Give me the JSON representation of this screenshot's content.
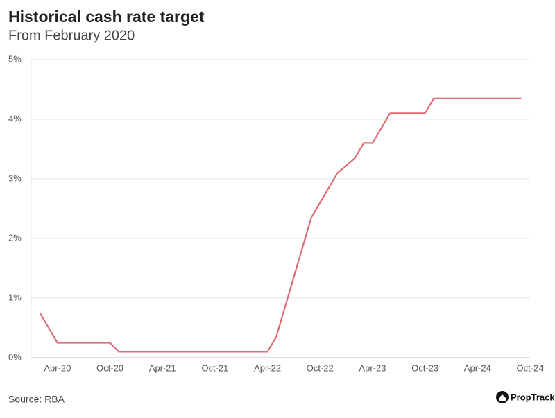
{
  "chart_data": {
    "type": "line",
    "title": "Historical cash rate target",
    "subtitle": "From February 2020",
    "source": "Source: RBA",
    "brand": "PropTrack",
    "categories": [
      null,
      null,
      null,
      "Apr-20",
      null,
      null,
      null,
      null,
      null,
      "Oct-20",
      null,
      null,
      null,
      null,
      null,
      "Apr-21",
      null,
      null,
      null,
      null,
      null,
      "Oct-21",
      null,
      null,
      null,
      null,
      null,
      "Apr-22",
      null,
      null,
      null,
      null,
      null,
      "Oct-22",
      null,
      null,
      null,
      null,
      null,
      "Apr-23",
      null,
      null,
      null,
      null,
      null,
      "Oct-23",
      null,
      null,
      null,
      null,
      null,
      "Apr-24",
      null,
      null,
      null,
      null,
      null,
      "Oct-24"
    ],
    "series": [
      {
        "name": "Cash rate target",
        "color": "#dc6b72",
        "values": [
          null,
          0.75,
          0.5,
          0.25,
          0.25,
          0.25,
          0.25,
          0.25,
          0.25,
          0.25,
          0.1,
          0.1,
          0.1,
          0.1,
          0.1,
          0.1,
          0.1,
          0.1,
          0.1,
          0.1,
          0.1,
          0.1,
          0.1,
          0.1,
          0.1,
          0.1,
          0.1,
          0.1,
          0.35,
          0.85,
          1.35,
          1.85,
          2.35,
          2.6,
          2.85,
          3.1,
          3.22,
          3.35,
          3.6,
          3.6,
          3.85,
          4.1,
          4.1,
          4.1,
          4.1,
          4.1,
          4.35,
          4.35,
          4.35,
          4.35,
          4.35,
          4.35,
          4.35,
          4.35,
          4.35,
          4.35,
          4.35,
          null
        ]
      }
    ],
    "ylim": [
      0,
      5
    ],
    "yticks": [
      {
        "value": 0,
        "label": "0%"
      },
      {
        "value": 1,
        "label": "1%"
      },
      {
        "value": 2,
        "label": "2%"
      },
      {
        "value": 3,
        "label": "3%"
      },
      {
        "value": 4,
        "label": "4%"
      },
      {
        "value": 5,
        "label": "5%"
      }
    ],
    "grid": true
  }
}
